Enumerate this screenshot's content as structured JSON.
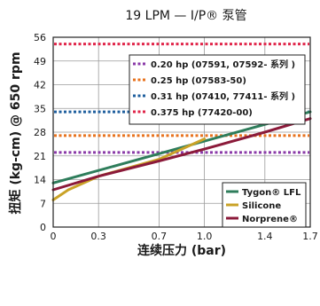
{
  "chart_data": {
    "type": "line",
    "title": "19 LPM — I/P® 泵管",
    "xlabel": "连续压力 (bar)",
    "ylabel": "扭矩 (kg-cm) @ 650 rpm",
    "xlim": [
      0,
      1.7
    ],
    "ylim": [
      0,
      56
    ],
    "xticks": [
      "0",
      "0.3",
      "0.7",
      "1.0",
      "1.4",
      "1.7"
    ],
    "yticks": [
      "0",
      "7",
      "14",
      "21",
      "28",
      "35",
      "42",
      "49",
      "56"
    ],
    "grid": true,
    "reference_lines": [
      {
        "label": "0.20 hp (07591, 07592- 系列 )",
        "value": 22,
        "color": "#8a3aa8"
      },
      {
        "label": "0.25 hp (07583-50)",
        "value": 27,
        "color": "#e8731f"
      },
      {
        "label": "0.31 hp (07410, 77411- 系列 )",
        "value": 34,
        "color": "#1f5f9e"
      },
      {
        "label": "0.375 hp (77420-00)",
        "value": 54,
        "color": "#e0264a"
      }
    ],
    "series": [
      {
        "name": "Tygon® LFL",
        "color": "#2e7d5b",
        "x": [
          0,
          1.7
        ],
        "y": [
          13,
          34
        ]
      },
      {
        "name": "Silicone",
        "color": "#c9a227",
        "x": [
          0,
          0.1,
          0.3,
          0.7,
          1.0
        ],
        "y": [
          8,
          11,
          15,
          20,
          26
        ]
      },
      {
        "name": "Norprene®",
        "color": "#8b1a3a",
        "x": [
          0,
          0.3,
          0.7,
          1.0,
          1.4,
          1.7
        ],
        "y": [
          11,
          15,
          19.5,
          23,
          28,
          32
        ]
      }
    ]
  }
}
